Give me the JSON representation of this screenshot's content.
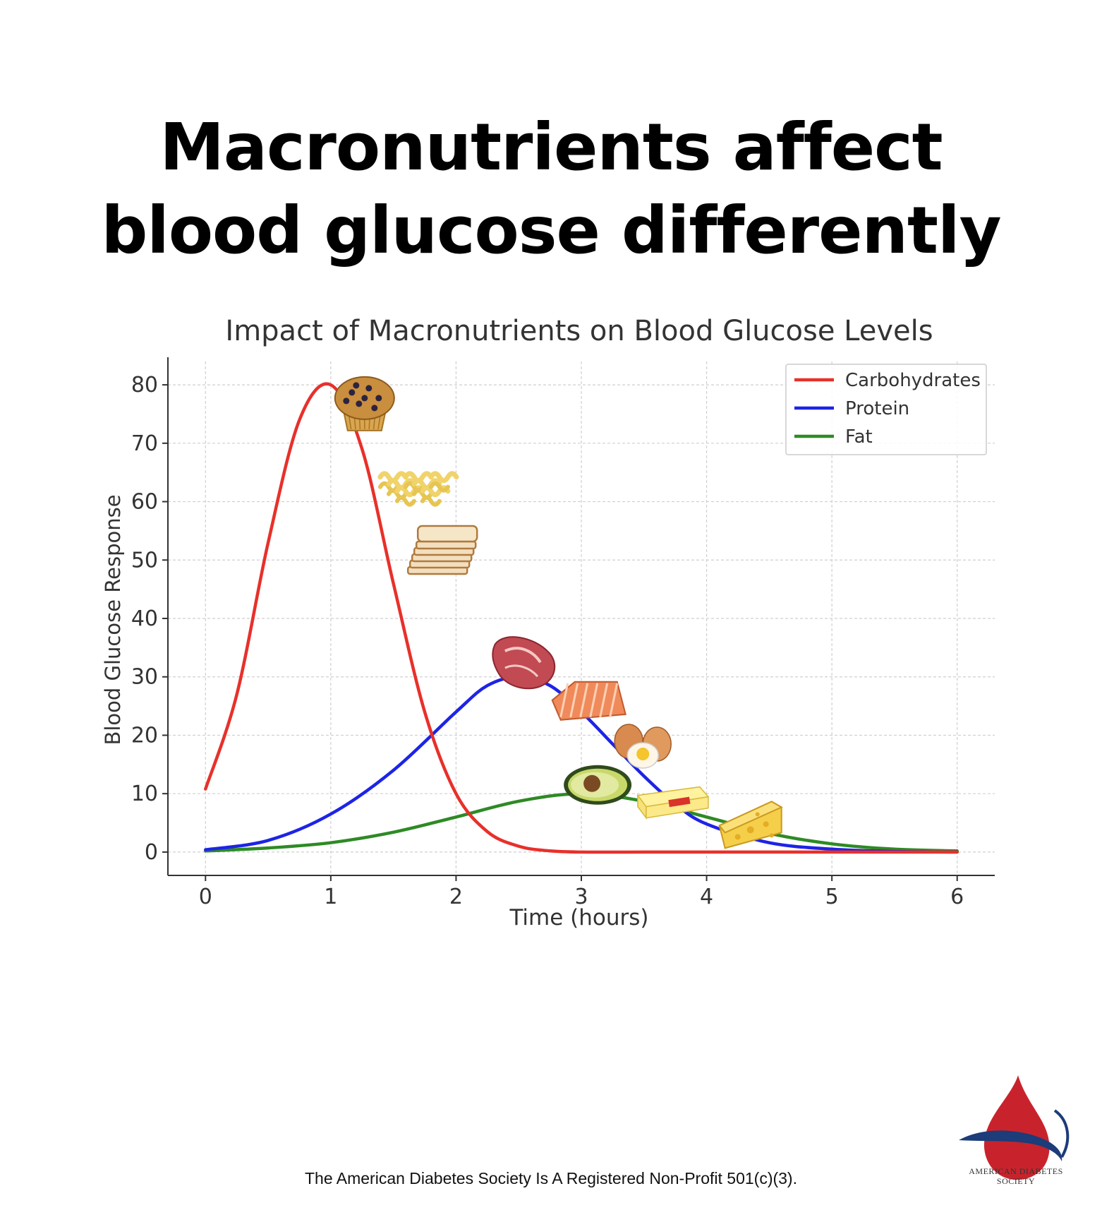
{
  "headline": {
    "line1": "Macronutrients affect",
    "line2": "blood glucose differently"
  },
  "chart_data": {
    "type": "line",
    "title": "Impact of Macronutrients on Blood Glucose Levels",
    "xlabel": "Time (hours)",
    "ylabel": "Blood Glucose Response",
    "xlim": [
      -0.3,
      6.3
    ],
    "ylim": [
      -4,
      84
    ],
    "xticks": [
      0,
      1,
      2,
      3,
      4,
      5,
      6
    ],
    "yticks": [
      0,
      10,
      20,
      30,
      40,
      50,
      60,
      70,
      80
    ],
    "grid": true,
    "legend_position": "top-right",
    "series": [
      {
        "name": "Carbohydrates",
        "color": "#e8302a",
        "x": [
          0,
          0.25,
          0.5,
          0.75,
          1,
          1.25,
          1.5,
          1.75,
          2,
          2.25,
          2.5,
          2.75,
          3,
          3.5,
          4,
          5,
          6
        ],
        "y": [
          10.8,
          27,
          53,
          74,
          80,
          69,
          46,
          24,
          10,
          3.5,
          1,
          0.2,
          0,
          0,
          0,
          0,
          0
        ]
      },
      {
        "name": "Protein",
        "color": "#1d24e6",
        "x": [
          0,
          0.5,
          1,
          1.5,
          2,
          2.25,
          2.5,
          2.75,
          3,
          3.25,
          3.5,
          3.75,
          4,
          4.5,
          5,
          5.5,
          6
        ],
        "y": [
          0.4,
          2,
          6.5,
          14,
          24,
          28.5,
          30,
          28.5,
          24,
          18.5,
          13,
          8.2,
          4.8,
          1.6,
          0.5,
          0.1,
          0
        ]
      },
      {
        "name": "Fat",
        "color": "#2e8a25",
        "x": [
          0,
          0.5,
          1,
          1.5,
          2,
          2.5,
          3,
          3.5,
          4,
          4.5,
          5,
          5.5,
          6
        ],
        "y": [
          0.2,
          0.7,
          1.6,
          3.4,
          6,
          8.7,
          10,
          8.7,
          6,
          3.2,
          1.4,
          0.5,
          0.2
        ]
      }
    ],
    "food_images": [
      {
        "name": "muffin-icon",
        "series": "Carbohydrates",
        "x": 1.27,
        "y": 77
      },
      {
        "name": "pasta-icon",
        "series": "Carbohydrates",
        "x": 1.62,
        "y": 63
      },
      {
        "name": "bread-icon",
        "series": "Carbohydrates",
        "x": 1.83,
        "y": 51
      },
      {
        "name": "steak-icon",
        "series": "Protein",
        "x": 2.56,
        "y": 32
      },
      {
        "name": "salmon-icon",
        "series": "Protein",
        "x": 3.06,
        "y": 26
      },
      {
        "name": "eggs-icon",
        "series": "Protein",
        "x": 3.48,
        "y": 18
      },
      {
        "name": "avocado-icon",
        "series": "Fat",
        "x": 3.13,
        "y": 11.5
      },
      {
        "name": "butter-icon",
        "series": "Fat",
        "x": 3.72,
        "y": 8.5
      },
      {
        "name": "cheese-icon",
        "series": "Fat",
        "x": 4.35,
        "y": 5.5
      }
    ]
  },
  "footer": {
    "text": "The American Diabetes Society Is A Registered Non-Profit 501(c)(3)."
  },
  "logo": {
    "line1": "AMERICAN DIABETES",
    "line2": "SOCIETY"
  }
}
